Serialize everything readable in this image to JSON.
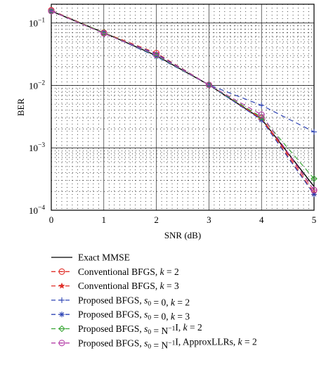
{
  "chart_data": {
    "type": "line",
    "title": "",
    "xlabel": "SNR (dB)",
    "ylabel": "BER",
    "x": [
      0,
      1,
      2,
      3,
      4,
      5
    ],
    "xlim": [
      0,
      5
    ],
    "ylim": [
      0.0001,
      0.2
    ],
    "yscale": "log",
    "x_ticks": [
      "0",
      "1",
      "2",
      "3",
      "4",
      "5"
    ],
    "y_ticks": [
      {
        "value": 0.1,
        "mantissa": "10",
        "exponent": "−1"
      },
      {
        "value": 0.01,
        "mantissa": "10",
        "exponent": "−2"
      },
      {
        "value": 0.001,
        "mantissa": "10",
        "exponent": "−3"
      },
      {
        "value": 0.0001,
        "mantissa": "10",
        "exponent": "−4"
      }
    ],
    "grid": true,
    "legend_position": "below",
    "series": [
      {
        "color": "#000000",
        "dash": "",
        "marker": "none",
        "values": [
          0.155,
          0.07,
          0.03,
          0.0102,
          0.0029,
          0.00024
        ],
        "legend": [
          {
            "t": "Exact MMSE"
          }
        ]
      },
      {
        "color": "#e0302a",
        "dash": "7,5",
        "marker": "circle-line",
        "values": [
          0.16,
          0.07,
          0.033,
          0.0102,
          0.003,
          0.00021
        ],
        "legend": [
          {
            "t": "Conventional BFGS, "
          },
          {
            "t": "k",
            "i": true
          },
          {
            "t": " = 2"
          }
        ]
      },
      {
        "color": "#e0302a",
        "dash": "7,5",
        "marker": "star",
        "values": [
          0.155,
          0.07,
          0.03,
          0.0102,
          0.0029,
          0.00019
        ],
        "legend": [
          {
            "t": "Conventional BFGS, "
          },
          {
            "t": "k",
            "i": true
          },
          {
            "t": " = 3"
          }
        ]
      },
      {
        "color": "#2f45b5",
        "dash": "7,5",
        "marker": "plus",
        "values": [
          0.158,
          0.068,
          0.032,
          0.0102,
          0.0048,
          0.0018
        ],
        "legend": [
          {
            "t": "Proposed BFGS, "
          },
          {
            "t": "s",
            "i": true
          },
          {
            "t": "0",
            "sub": true
          },
          {
            "t": " = 0, "
          },
          {
            "t": "k",
            "i": true
          },
          {
            "t": " = 2"
          }
        ]
      },
      {
        "color": "#2f45b5",
        "dash": "7,5",
        "marker": "asterisk",
        "values": [
          0.155,
          0.07,
          0.029,
          0.0102,
          0.0028,
          0.00018
        ],
        "legend": [
          {
            "t": "Proposed BFGS, "
          },
          {
            "t": "s",
            "i": true
          },
          {
            "t": "0",
            "sub": true
          },
          {
            "t": " = 0, "
          },
          {
            "t": "k",
            "i": true
          },
          {
            "t": " = 3"
          }
        ]
      },
      {
        "color": "#3aa636",
        "dash": "7,5",
        "marker": "diamond",
        "values": [
          0.155,
          0.07,
          0.03,
          0.0102,
          0.0031,
          0.00032
        ],
        "legend": [
          {
            "t": "Proposed BFGS, "
          },
          {
            "t": "s",
            "i": true
          },
          {
            "t": "0",
            "sub": true
          },
          {
            "t": " = N"
          },
          {
            "t": "−1",
            "sup": true
          },
          {
            "t": "I, "
          },
          {
            "t": "k",
            "i": true
          },
          {
            "t": " = 2"
          }
        ]
      },
      {
        "color": "#b53fa8",
        "dash": "7,5",
        "marker": "circle-line",
        "values": [
          0.155,
          0.068,
          0.031,
          0.0102,
          0.0034,
          0.00021
        ],
        "legend": [
          {
            "t": "Proposed BFGS, "
          },
          {
            "t": "s",
            "i": true
          },
          {
            "t": "0",
            "sub": true
          },
          {
            "t": " = N"
          },
          {
            "t": "−1",
            "sup": true
          },
          {
            "t": "I, ApproxLLRs, "
          },
          {
            "t": "k",
            "i": true
          },
          {
            "t": " = 2"
          }
        ]
      }
    ]
  }
}
